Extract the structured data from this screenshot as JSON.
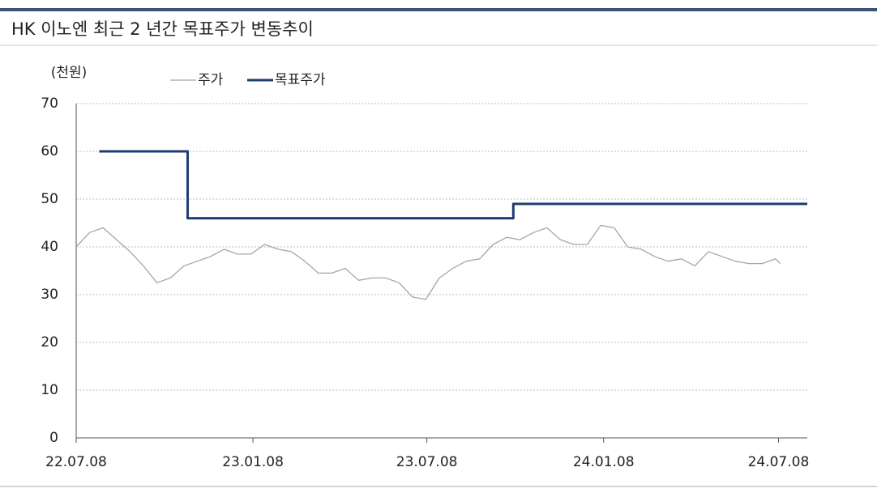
{
  "chart_data": {
    "type": "line",
    "title": "HK 이노엔 최근 2 년간 목표주가 변동추이",
    "y_label": "(천원)",
    "xlim": [
      "22.07.08",
      "24.08.07"
    ],
    "xticks": [
      "22.07.08",
      "23.01.08",
      "23.07.08",
      "24.01.08",
      "24.07.08"
    ],
    "ylim": [
      0,
      70
    ],
    "yticks": [
      0,
      10,
      20,
      30,
      40,
      50,
      60,
      70
    ],
    "grid": true,
    "series": [
      {
        "name": "주가",
        "color": "#a6a6a6",
        "x": [
          "22.07.08",
          "22.07.22",
          "22.08.05",
          "22.08.19",
          "22.09.02",
          "22.09.16",
          "22.09.30",
          "22.10.14",
          "22.10.28",
          "22.11.11",
          "22.11.25",
          "22.12.09",
          "22.12.23",
          "23.01.06",
          "23.01.20",
          "23.02.03",
          "23.02.17",
          "23.03.03",
          "23.03.17",
          "23.03.31",
          "23.04.14",
          "23.04.28",
          "23.05.12",
          "23.05.26",
          "23.06.09",
          "23.06.23",
          "23.07.07",
          "23.07.21",
          "23.08.04",
          "23.08.18",
          "23.09.01",
          "23.09.15",
          "23.09.29",
          "23.10.13",
          "23.10.27",
          "23.11.10",
          "23.11.24",
          "23.12.08",
          "23.12.22",
          "24.01.05",
          "24.01.19",
          "24.02.02",
          "24.02.16",
          "24.03.01",
          "24.03.15",
          "24.03.29",
          "24.04.12",
          "24.04.26",
          "24.05.10",
          "24.05.24",
          "24.06.07",
          "24.06.21",
          "24.07.05",
          "24.07.10"
        ],
        "values": [
          40,
          43,
          44,
          41.5,
          39,
          36,
          32.5,
          33.5,
          36,
          37,
          38,
          39.5,
          38.5,
          38.5,
          40.5,
          39.5,
          39,
          37,
          34.5,
          34.5,
          35.5,
          33,
          33.5,
          33.5,
          32.5,
          29.5,
          29,
          33.5,
          35.5,
          37,
          37.5,
          40.5,
          42,
          41.5,
          43,
          44,
          41.5,
          40.5,
          40.5,
          44.5,
          44,
          40,
          39.5,
          38,
          37,
          37.5,
          36,
          39,
          38,
          37,
          36.5,
          36.5,
          37.5,
          36.5
        ]
      },
      {
        "name": "목표주가",
        "color": "#1f3c72",
        "x": [
          "22.08.01",
          "22.11.01",
          "22.11.01",
          "23.10.06",
          "23.10.06",
          "24.08.07"
        ],
        "values": [
          60,
          60,
          46,
          46,
          49,
          49
        ]
      }
    ]
  }
}
